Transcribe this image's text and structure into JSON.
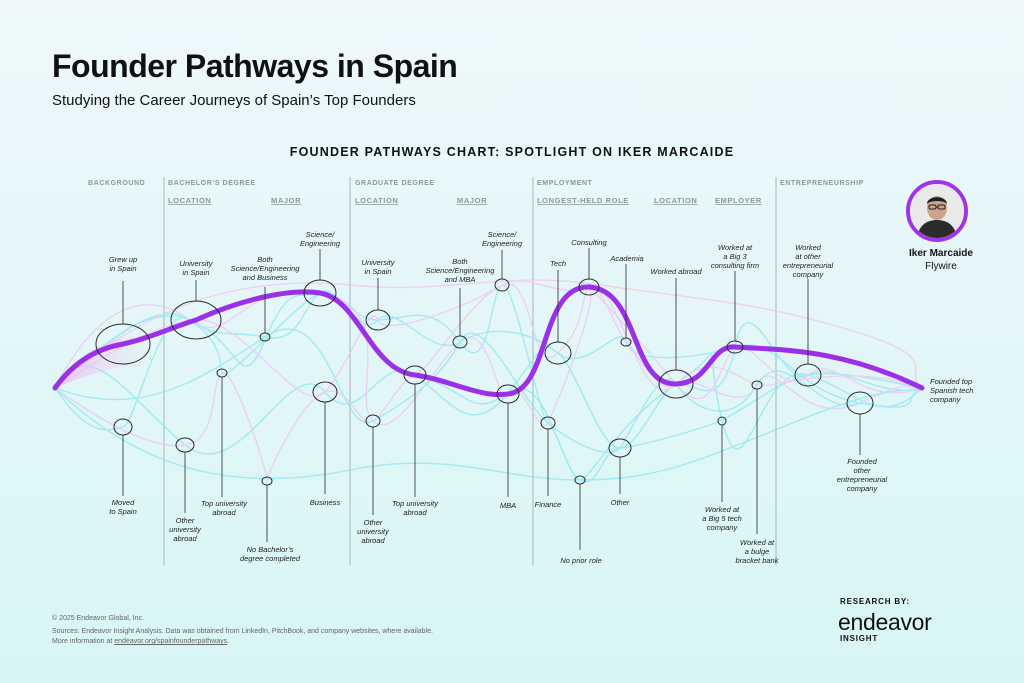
{
  "header": {
    "title": "Founder Pathways in Spain",
    "subtitle": "Studying the Career Journeys of Spain’s Top Founders",
    "chart_title": "FOUNDER PATHWAYS CHART: SPOTLIGHT ON IKER MARCAIDE"
  },
  "categories": {
    "background": "BACKGROUND",
    "bachelors": "BACHELOR'S DEGREE",
    "graduate": "GRADUATE DEGREE",
    "employment": "EMPLOYMENT",
    "entrepreneurship": "ENTREPRENEURSHIP"
  },
  "subcategories": {
    "location_1": "LOCATION",
    "major_1": "MAJOR",
    "location_2": "LOCATION",
    "major_2": "MAJOR",
    "longest_role": "LONGEST-HELD ROLE",
    "location_3": "LOCATION",
    "employer": "EMPLOYER"
  },
  "nodes": {
    "grew_up": [
      "Grew up",
      "in Spain"
    ],
    "moved": [
      "Moved",
      "to Spain"
    ],
    "uni_spain": [
      "University",
      "in Spain"
    ],
    "other_uni": [
      "Other",
      "university",
      "abroad"
    ],
    "top_uni": [
      "Top university",
      "abroad"
    ],
    "both_sci_bus": [
      "Both",
      "Science/Engineering",
      "and Business"
    ],
    "no_bach": [
      "No Bachelor’s",
      "degree completed"
    ],
    "sci_eng_1": [
      "Science/",
      "Engineering"
    ],
    "business": [
      "Business"
    ],
    "grad_uni_spain": [
      "University",
      "in Spain"
    ],
    "grad_other_uni": [
      "Other",
      "university",
      "abroad"
    ],
    "grad_top_uni": [
      "Top university",
      "abroad"
    ],
    "both_sci_mba": [
      "Both",
      "Science/Engineering",
      "and MBA"
    ],
    "sci_eng_2": [
      "Science/",
      "Engineering"
    ],
    "mba": [
      "MBA"
    ],
    "tech": [
      "Tech"
    ],
    "consulting": [
      "Consulting"
    ],
    "academia": [
      "Academia"
    ],
    "finance": [
      "Finance"
    ],
    "no_prior": [
      "No prior role"
    ],
    "other": [
      "Other"
    ],
    "worked_abroad": [
      "Worked abroad"
    ],
    "big3": [
      "Worked at",
      "a Big 3",
      "consulting firm"
    ],
    "big5": [
      "Worked at",
      "a Big 5 tech",
      "company"
    ],
    "bulge": [
      "Worked at",
      "a bulge",
      "bracket bank"
    ],
    "other_ent": [
      "Worked",
      "at other",
      "entrepreneurial",
      "company"
    ],
    "founded_other": [
      "Founded",
      "other",
      "entrepreneurial",
      "company"
    ],
    "founded_top": [
      "Founded top",
      "Spanish tech",
      "company"
    ]
  },
  "spotlight": {
    "name": "Iker Marcaide",
    "company": "Flywire",
    "avatar_icon": "person-portrait-icon",
    "ring_color": "#a233e6"
  },
  "colors": {
    "highlight": "#9b30e8",
    "flow_cyan": "#8ee6ef",
    "flow_pink": "#f0c4f2"
  },
  "footer": {
    "copyright": "© 2025 Endeavor Global, Inc.",
    "sources": "Sources:  Endeavor Insight Analysis. Data was obtained from LinkedIn, PitchBook, and company websites, where available.",
    "more_prefix": "More information at ",
    "more_link": "endeavor.org/spainfounderpathways",
    "more_suffix": ".",
    "research_by": "RESEARCH BY:",
    "logo_word": "endeavor",
    "logo_sub": "INSIGHT"
  }
}
